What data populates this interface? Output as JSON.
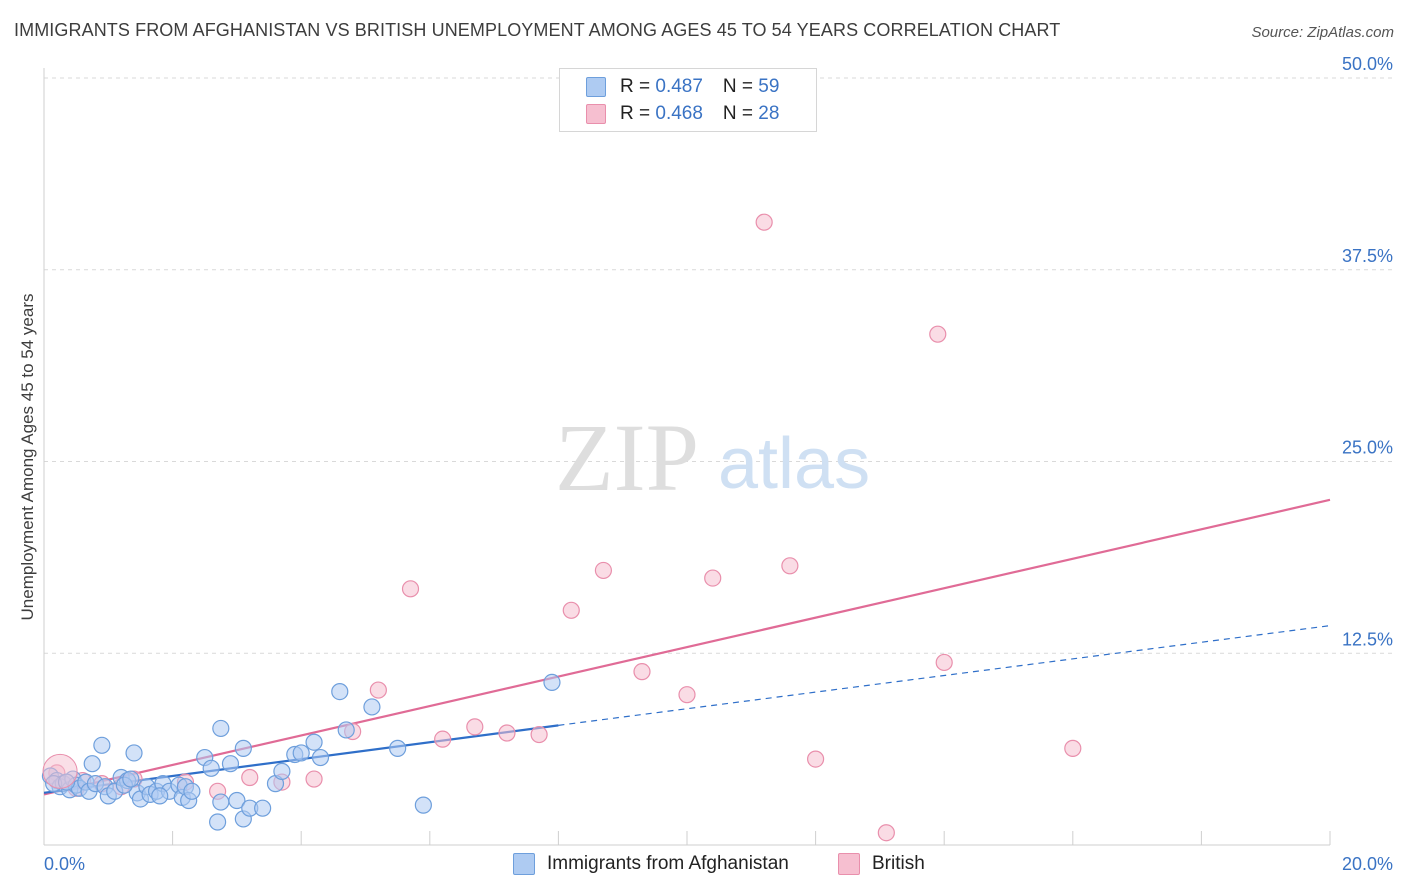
{
  "title": "IMMIGRANTS FROM AFGHANISTAN VS BRITISH UNEMPLOYMENT AMONG AGES 45 TO 54 YEARS CORRELATION CHART",
  "source": "Source: ZipAtlas.com",
  "watermark": {
    "zip": "ZIP",
    "atlas": "atlas"
  },
  "colors": {
    "blue_fill": "#aecbf2",
    "blue_stroke": "#6e9fdc",
    "blue_line": "#2f6fc9",
    "pink_fill": "#f6bfd0",
    "pink_stroke": "#e98fac",
    "pink_line": "#e06b96",
    "tick_text": "#3a73c4",
    "grid": "#d9d9d9"
  },
  "legend": {
    "rows": [
      {
        "r_label": "R = ",
        "r_value": "0.487",
        "n_label": "N = ",
        "n_value": "59"
      },
      {
        "r_label": "R = ",
        "r_value": "0.468",
        "n_label": "N = ",
        "n_value": "28"
      }
    ]
  },
  "bottom_legend": [
    "Immigrants from Afghanistan",
    "British"
  ],
  "chart_data": {
    "type": "scatter",
    "title": "IMMIGRANTS FROM AFGHANISTAN VS BRITISH UNEMPLOYMENT AMONG AGES 45 TO 54 YEARS CORRELATION CHART",
    "xlabel": "",
    "ylabel": "Unemployment Among Ages 45 to 54 years",
    "xlim": [
      0,
      20
    ],
    "ylim": [
      0,
      50
    ],
    "x_tick_labels": [
      "0.0%",
      "20.0%"
    ],
    "y_ticks": [
      12.5,
      25.0,
      37.5,
      50.0
    ],
    "y_tick_labels": [
      "12.5%",
      "25.0%",
      "37.5%",
      "50.0%"
    ],
    "grid": true,
    "legend_position": "top-center",
    "series": [
      {
        "name": "Immigrants from Afghanistan",
        "r": 0.487,
        "n": 59,
        "points": [
          [
            0.1,
            4.5
          ],
          [
            0.2,
            4.2
          ],
          [
            0.25,
            3.8
          ],
          [
            0.3,
            4.0
          ],
          [
            0.4,
            3.6
          ],
          [
            0.45,
            4.3
          ],
          [
            0.5,
            3.9
          ],
          [
            0.55,
            3.7
          ],
          [
            0.65,
            4.1
          ],
          [
            0.7,
            3.5
          ],
          [
            0.75,
            5.3
          ],
          [
            0.8,
            4.0
          ],
          [
            0.9,
            6.5
          ],
          [
            0.95,
            3.8
          ],
          [
            1.0,
            3.2
          ],
          [
            1.1,
            3.5
          ],
          [
            1.2,
            4.4
          ],
          [
            1.3,
            4.2
          ],
          [
            1.4,
            6.0
          ],
          [
            1.45,
            3.4
          ],
          [
            1.5,
            3.0
          ],
          [
            1.6,
            3.8
          ],
          [
            1.65,
            3.3
          ],
          [
            1.75,
            3.5
          ],
          [
            1.85,
            4.0
          ],
          [
            1.95,
            3.5
          ],
          [
            2.1,
            3.9
          ],
          [
            2.15,
            3.1
          ],
          [
            2.2,
            3.8
          ],
          [
            2.25,
            2.9
          ],
          [
            2.3,
            3.5
          ],
          [
            2.5,
            5.7
          ],
          [
            2.6,
            5.0
          ],
          [
            2.7,
            1.5
          ],
          [
            2.75,
            7.6
          ],
          [
            2.75,
            2.8
          ],
          [
            2.9,
            5.3
          ],
          [
            3.0,
            2.9
          ],
          [
            3.1,
            6.3
          ],
          [
            3.1,
            1.7
          ],
          [
            3.2,
            2.4
          ],
          [
            3.4,
            2.4
          ],
          [
            3.6,
            4.0
          ],
          [
            3.7,
            4.8
          ],
          [
            3.9,
            5.9
          ],
          [
            4.0,
            6.0
          ],
          [
            4.2,
            6.7
          ],
          [
            4.3,
            5.7
          ],
          [
            4.6,
            10.0
          ],
          [
            4.7,
            7.5
          ],
          [
            5.1,
            9.0
          ],
          [
            5.5,
            6.3
          ],
          [
            5.9,
            2.6
          ],
          [
            7.9,
            10.6
          ],
          [
            0.15,
            4.0
          ],
          [
            0.35,
            4.1
          ],
          [
            1.25,
            3.9
          ],
          [
            1.35,
            4.3
          ],
          [
            1.8,
            3.2
          ]
        ],
        "trend": {
          "solid": [
            [
              0,
              3.4
            ],
            [
              8.0,
              7.8
            ]
          ],
          "dashed": [
            [
              8.0,
              7.8
            ],
            [
              20.0,
              14.3
            ]
          ]
        }
      },
      {
        "name": "British",
        "r": 0.468,
        "n": 28,
        "points": [
          [
            0.2,
            4.7
          ],
          [
            0.5,
            3.7
          ],
          [
            0.6,
            4.2
          ],
          [
            0.9,
            4.0
          ],
          [
            1.2,
            3.8
          ],
          [
            1.4,
            4.3
          ],
          [
            2.2,
            4.1
          ],
          [
            2.7,
            3.5
          ],
          [
            3.2,
            4.4
          ],
          [
            3.7,
            4.1
          ],
          [
            4.2,
            4.3
          ],
          [
            4.8,
            7.4
          ],
          [
            5.2,
            10.1
          ],
          [
            5.7,
            16.7
          ],
          [
            6.2,
            6.9
          ],
          [
            6.7,
            7.7
          ],
          [
            7.2,
            7.3
          ],
          [
            7.7,
            7.2
          ],
          [
            8.2,
            15.3
          ],
          [
            8.7,
            17.9
          ],
          [
            9.3,
            11.3
          ],
          [
            10.0,
            9.8
          ],
          [
            10.4,
            17.4
          ],
          [
            11.2,
            40.6
          ],
          [
            11.6,
            18.2
          ],
          [
            12.0,
            5.6
          ],
          [
            13.1,
            0.8
          ],
          [
            13.9,
            33.3
          ]
        ],
        "extra_points": [
          [
            14.0,
            11.9
          ],
          [
            16.0,
            6.3
          ]
        ],
        "trend": {
          "solid": [
            [
              0,
              3.3
            ],
            [
              20.0,
              22.5
            ]
          ]
        }
      }
    ]
  }
}
